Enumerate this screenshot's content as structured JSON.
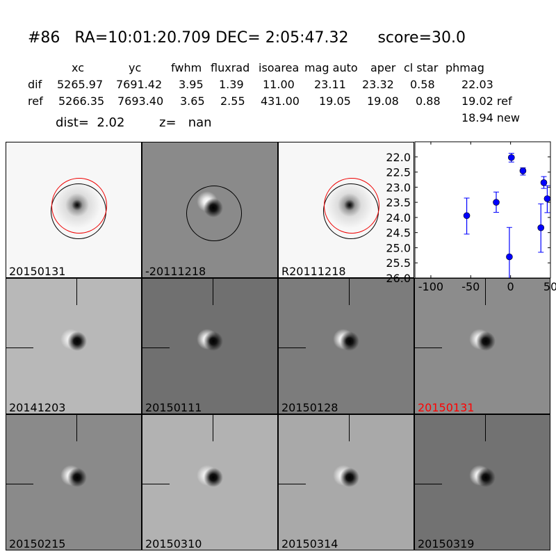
{
  "title": "#86   RA=10:01:20.709 DEC= 2:05:47.32      score=30.0",
  "table": {
    "headers": [
      "xc",
      "yc",
      "fwhm",
      "fluxrad",
      "isoarea",
      "mag auto",
      "aper",
      "cl star",
      "phmag"
    ],
    "rows": [
      {
        "label": "dif",
        "values": [
          "5265.97",
          "7691.42",
          "3.95",
          "1.39",
          "11.00",
          "23.11",
          "23.32",
          "0.58",
          "22.03"
        ]
      },
      {
        "label": "ref",
        "values": [
          "5266.35",
          "7693.40",
          "3.65",
          "2.55",
          "431.00",
          "19.05",
          "19.08",
          "0.88",
          "19.02 ref"
        ]
      }
    ],
    "new_mag": "18.94 new",
    "dist": "dist=  2.02",
    "z": "z=   nan"
  },
  "stamps": [
    {
      "label": "20150131",
      "bg": "#f7f7f7",
      "type": "dark"
    },
    {
      "label": "-20111218",
      "bg": "#8a8a8a",
      "type": "dipole"
    },
    {
      "label": "R20111218",
      "bg": "#f7f7f7",
      "type": "dark"
    },
    {
      "label": "20141203",
      "bg": "#b8b8b8",
      "type": "dipole"
    },
    {
      "label": "20150111",
      "bg": "#707070",
      "type": "dipole"
    },
    {
      "label": "20150128",
      "bg": "#7c7c7c",
      "type": "dipole"
    },
    {
      "label": "20150131",
      "bg": "#8c8c8c",
      "type": "dipole",
      "label_color": "#ff0000"
    },
    {
      "label": "20150215",
      "bg": "#8a8a8a",
      "type": "dipole"
    },
    {
      "label": "20150310",
      "bg": "#b2b2b2",
      "type": "dipole"
    },
    {
      "label": "20150314",
      "bg": "#a9a9a9",
      "type": "dipole"
    },
    {
      "label": "20150319",
      "bg": "#727272",
      "type": "dipole"
    }
  ],
  "chart_data": {
    "type": "scatter",
    "error_bars": true,
    "color": "#0000ff",
    "xlim": [
      -120,
      50
    ],
    "ylim": [
      26.0,
      21.5
    ],
    "y_inverted": true,
    "xticks": [
      -100,
      -50,
      0,
      50
    ],
    "yticks": [
      "22.0",
      "22.5",
      "23.0",
      "23.5",
      "24.0",
      "24.5",
      "25.0",
      "25.5",
      "26.0"
    ],
    "points": [
      {
        "x": -55,
        "y": 23.94,
        "lo": 23.36,
        "hi": 24.55
      },
      {
        "x": -18,
        "y": 23.5,
        "lo": 23.16,
        "hi": 23.83
      },
      {
        "x": -1.5,
        "y": 25.3,
        "lo": 24.33,
        "hi": 26.3
      },
      {
        "x": 1,
        "y": 22.02,
        "lo": 21.88,
        "hi": 22.17
      },
      {
        "x": 15.5,
        "y": 22.46,
        "lo": 22.36,
        "hi": 22.6
      },
      {
        "x": 38,
        "y": 24.34,
        "lo": 23.55,
        "hi": 25.15
      },
      {
        "x": 41.7,
        "y": 22.85,
        "lo": 22.65,
        "hi": 23.04
      },
      {
        "x": 46,
        "y": 23.38,
        "lo": 22.95,
        "hi": 23.84
      }
    ]
  }
}
